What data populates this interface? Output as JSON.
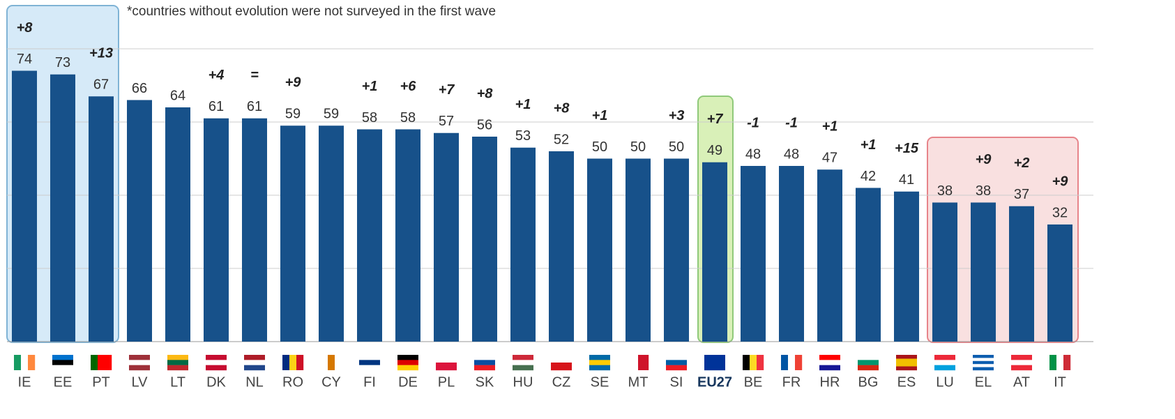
{
  "chart_data": {
    "type": "bar",
    "note": "*countries without evolution were not surveyed in the first wave",
    "categories": [
      "IE",
      "EE",
      "PT",
      "LV",
      "LT",
      "DK",
      "NL",
      "RO",
      "CY",
      "FI",
      "DE",
      "PL",
      "SK",
      "HU",
      "CZ",
      "SE",
      "MT",
      "SI",
      "EU27",
      "BE",
      "FR",
      "HR",
      "BG",
      "ES",
      "LU",
      "EL",
      "AT",
      "IT"
    ],
    "values": [
      74,
      73,
      67,
      66,
      64,
      61,
      61,
      59,
      59,
      58,
      58,
      57,
      56,
      53,
      52,
      50,
      50,
      50,
      49,
      48,
      48,
      47,
      42,
      41,
      38,
      38,
      37,
      32
    ],
    "annotations": [
      "+8",
      null,
      "+13",
      null,
      null,
      "+4",
      "=",
      "+9",
      null,
      "+1",
      "+6",
      "+7",
      "+8",
      "+1",
      "+8",
      "+1",
      null,
      "+3",
      "+7",
      "-1",
      "-1",
      "+1",
      "+1",
      "+15",
      null,
      "+9",
      "+2",
      "+9"
    ],
    "color": "#17518a",
    "ylim": [
      0,
      80
    ],
    "yticks": [
      0,
      20,
      40,
      60,
      80
    ],
    "grid": true
  }
}
